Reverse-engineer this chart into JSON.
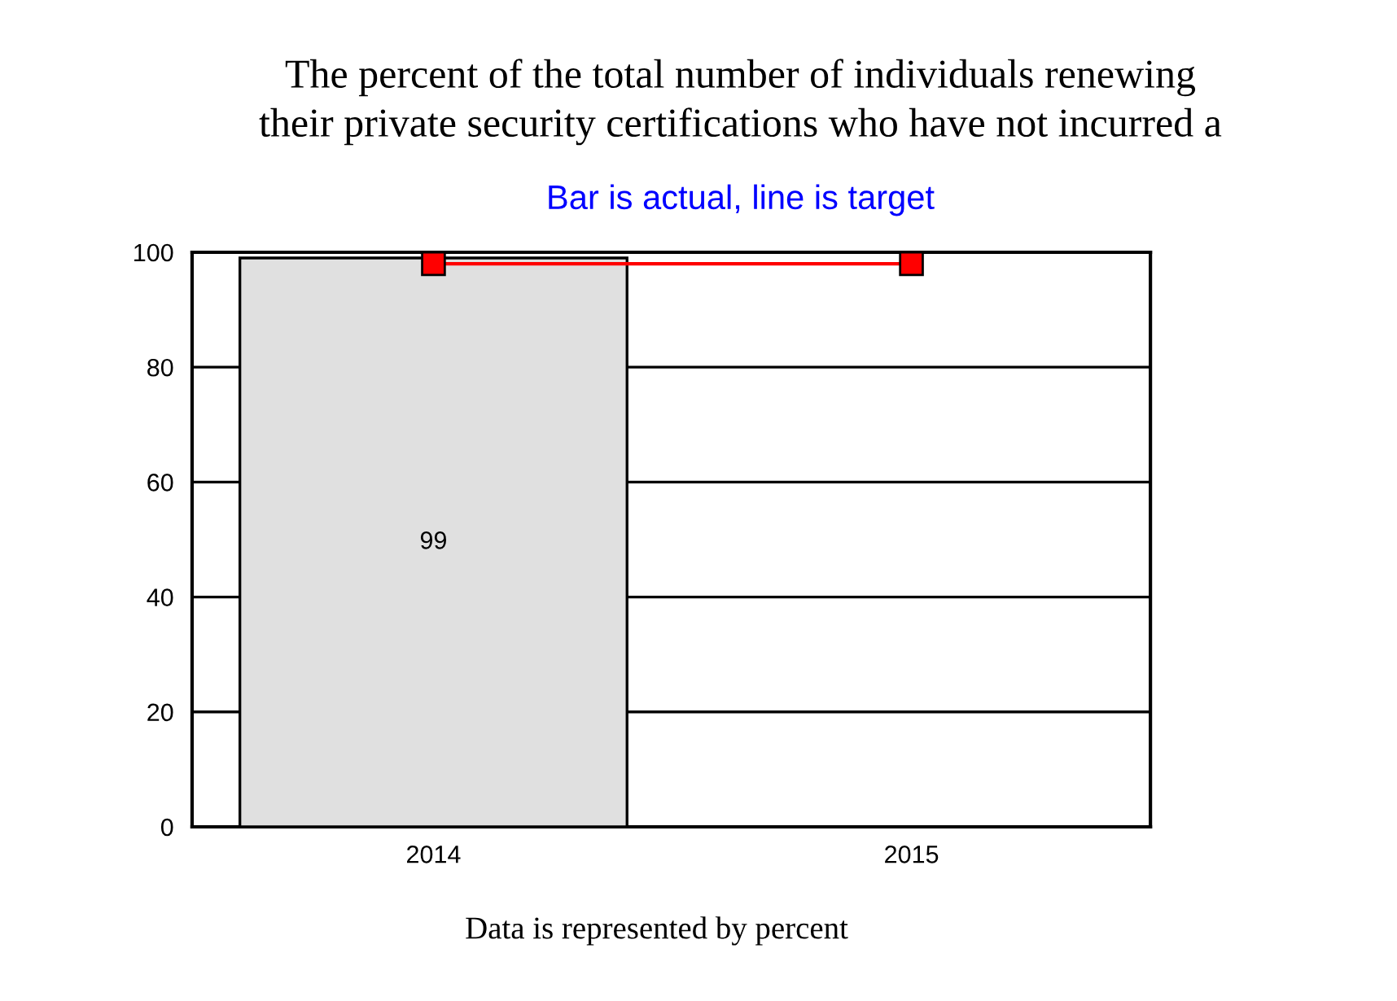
{
  "chart_data": {
    "type": "bar",
    "title": "The percent of the total number of individuals renewing\ntheir private security certifications who have not incurred a",
    "subtitle": "Bar is actual, line is target",
    "categories": [
      "2014",
      "2015"
    ],
    "series": [
      {
        "color": "#e0e0e0",
        "values": [
          99,
          null
        ],
        "value_labels": [
          "99",
          null
        ]
      },
      {
        "type": "line",
        "color": "#ff0000",
        "values": [
          98,
          98
        ],
        "marker": "square"
      }
    ],
    "ylim": [
      0,
      100
    ],
    "yticks": [
      0,
      20,
      40,
      60,
      80,
      100
    ],
    "grid": "y",
    "legend": false,
    "annotations": [
      "Data is represented by percent"
    ]
  }
}
